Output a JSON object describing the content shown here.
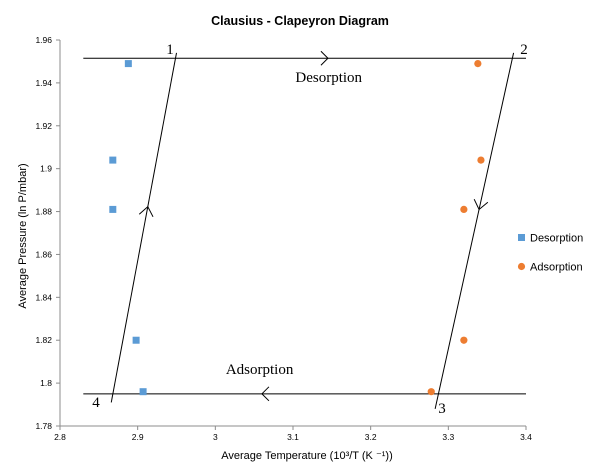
{
  "chart_data": {
    "type": "scatter",
    "title": "Clausius - Clapeyron Diagram",
    "xlabel": "Average Temperature (10³/T (K ⁻¹))",
    "ylabel": "Average Pressure (ln P/mbar)",
    "xlim": [
      2.8,
      3.4
    ],
    "ylim": [
      1.78,
      1.96
    ],
    "x_ticks": [
      "2.8",
      "2.9",
      "3",
      "3.1",
      "3.2",
      "3.3",
      "3.4"
    ],
    "y_ticks": [
      "1.78",
      "1.8",
      "1.82",
      "1.84",
      "1.86",
      "1.88",
      "1.9",
      "1.92",
      "1.94",
      "1.96"
    ],
    "grid": false,
    "legend_position": "right",
    "series": [
      {
        "name": "Desorption",
        "marker": "square",
        "color": "#5B9BD5",
        "points": [
          [
            2.888,
            1.949
          ],
          [
            2.868,
            1.904
          ],
          [
            2.868,
            1.881
          ],
          [
            2.898,
            1.82
          ],
          [
            2.907,
            1.796
          ]
        ]
      },
      {
        "name": "Adsorption",
        "marker": "circle",
        "color": "#ED7D31",
        "points": [
          [
            3.338,
            1.949
          ],
          [
            3.342,
            1.904
          ],
          [
            3.32,
            1.881
          ],
          [
            3.32,
            1.82
          ],
          [
            3.278,
            1.796
          ]
        ]
      }
    ],
    "cycle": {
      "horizontal_lines": [
        {
          "y": 1.9515,
          "x_start": 2.83,
          "x_end": 3.4,
          "label": "Desorption",
          "arrow": "right"
        },
        {
          "y": 1.795,
          "x_start": 2.83,
          "x_end": 3.4,
          "label": "Adsorption",
          "arrow": "left"
        }
      ],
      "sloped_lines": [
        {
          "from": [
            2.866,
            1.791
          ],
          "to": [
            2.95,
            1.954
          ],
          "arrow": "up"
        },
        {
          "from": [
            3.283,
            1.788
          ],
          "to": [
            3.384,
            1.954
          ],
          "arrow": "down"
        }
      ],
      "corner_labels": [
        "1",
        "2",
        "3",
        "4"
      ]
    }
  }
}
